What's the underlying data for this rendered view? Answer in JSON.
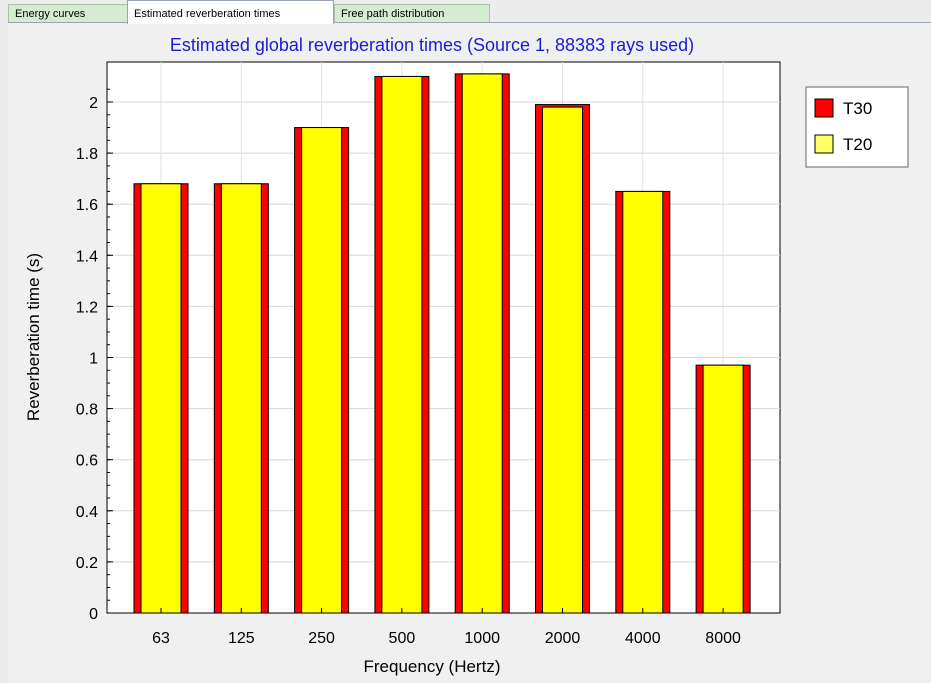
{
  "tabs": [
    {
      "label": "Energy  curves",
      "active": false
    },
    {
      "label": "Estimated reverberation times",
      "active": true
    },
    {
      "label": "Free path distribution",
      "active": false
    }
  ],
  "chart_data": {
    "type": "bar",
    "title": "Estimated global reverberation times (Source 1, 88383 rays used)",
    "xlabel": "Frequency (Hertz)",
    "ylabel": "Reverberation time (s)",
    "categories": [
      "63",
      "125",
      "250",
      "500",
      "1000",
      "2000",
      "4000",
      "8000"
    ],
    "series": [
      {
        "name": "T30",
        "color": "#ff0000",
        "values": [
          1.68,
          1.68,
          1.9,
          2.1,
          2.11,
          1.99,
          1.65,
          0.97
        ]
      },
      {
        "name": "T20",
        "color": "#ffff00",
        "values": [
          1.68,
          1.68,
          1.9,
          2.1,
          2.11,
          1.98,
          1.65,
          0.97
        ]
      }
    ],
    "ylim": [
      0,
      2.1
    ],
    "yticks": [
      "0",
      "0.2",
      "0.4",
      "0.6",
      "0.8",
      "1",
      "1.2",
      "1.4",
      "1.6",
      "1.8",
      "2"
    ],
    "grid": true,
    "legend_position": "top-right"
  }
}
